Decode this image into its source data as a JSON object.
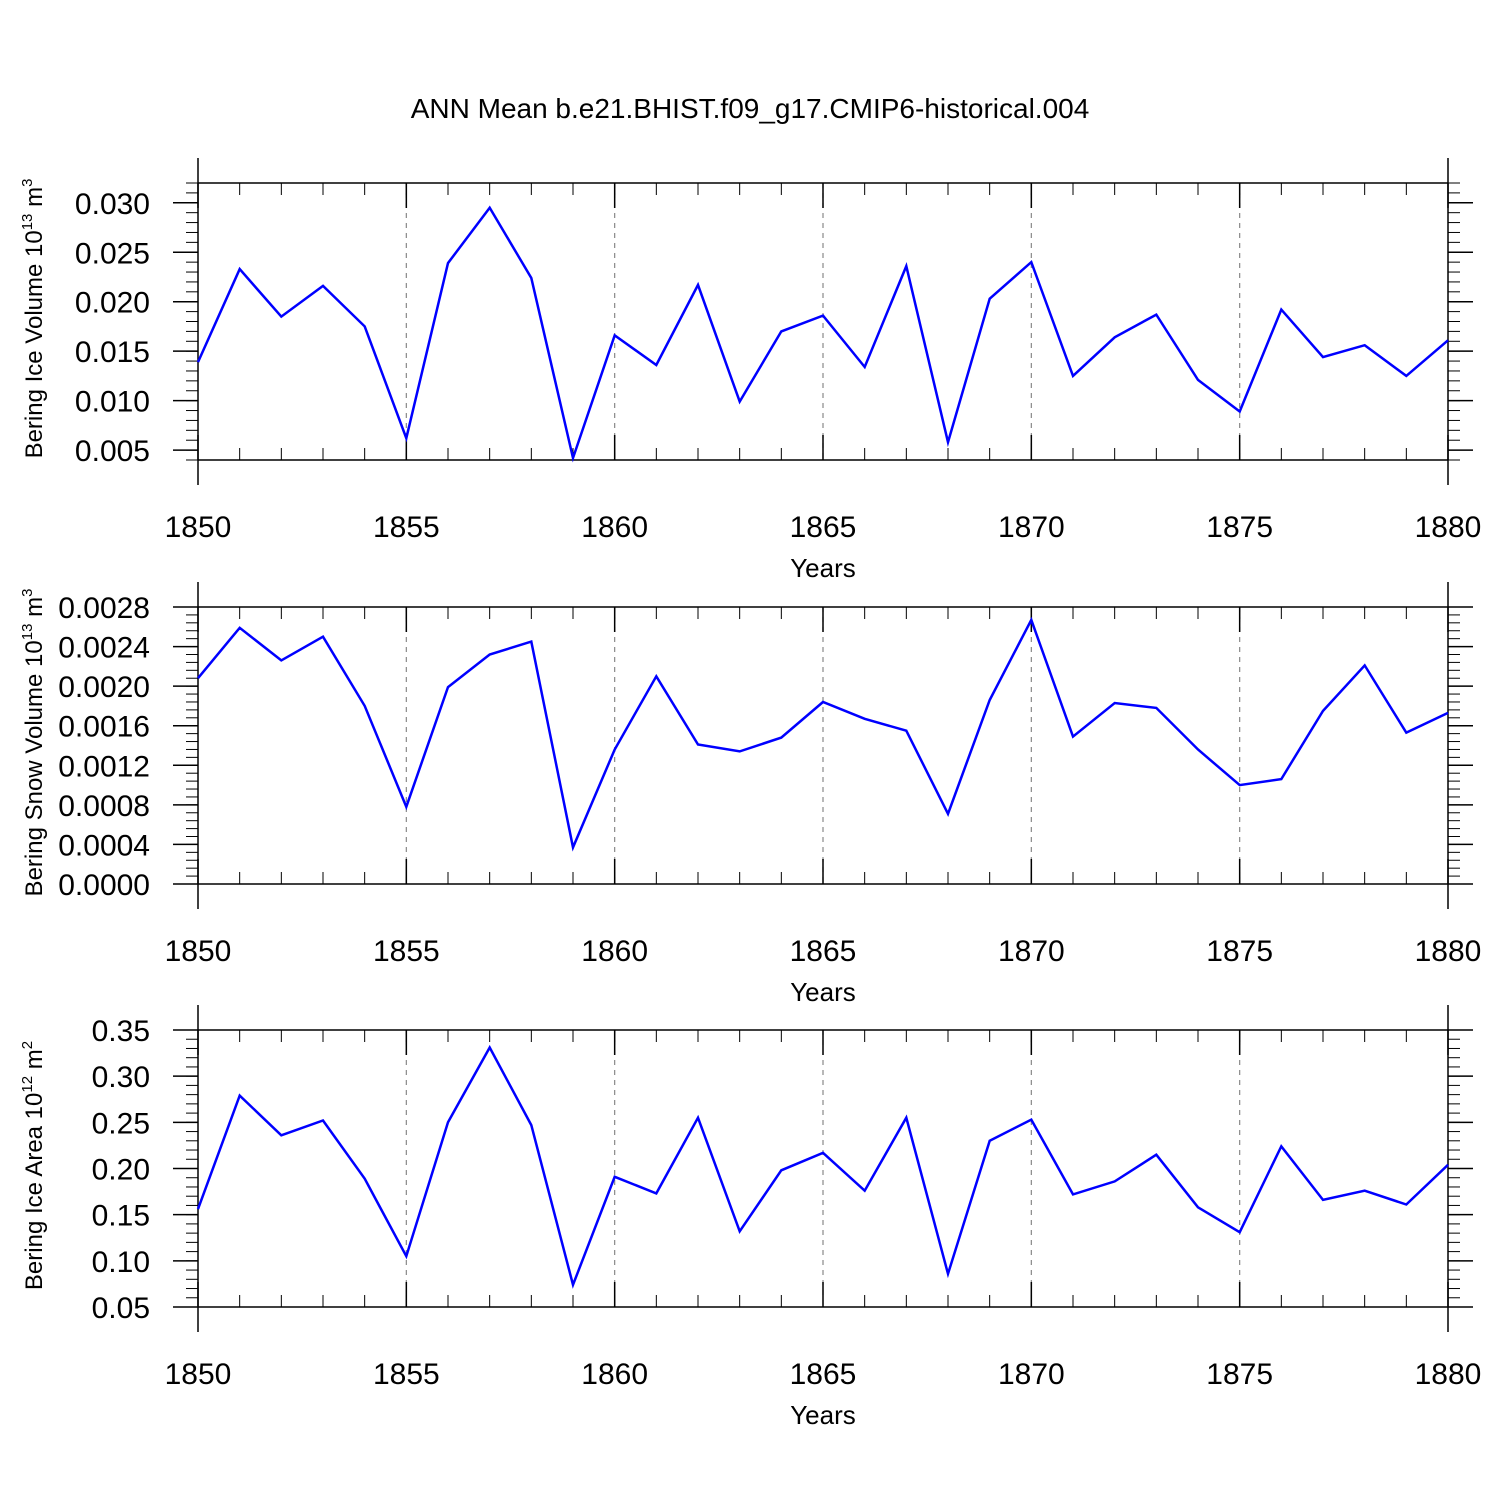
{
  "title": "ANN Mean b.e21.BHIST.f09_g17.CMIP6-historical.004",
  "colors": {
    "line": "#0000ff",
    "axis": "#000000",
    "grid": "#888888"
  },
  "chart_data": [
    {
      "type": "line",
      "ylabel": {
        "text": "Bering Ice Volume 10",
        "exp": "13",
        "unit": " m",
        "unit_exp": "3"
      },
      "xlabel": "Years",
      "xlim": [
        1850,
        1880
      ],
      "xticks": [
        1850,
        1855,
        1860,
        1865,
        1870,
        1875,
        1880
      ],
      "ylim": [
        0.004,
        0.032
      ],
      "yticks": [
        0.005,
        0.01,
        0.015,
        0.02,
        0.025,
        0.03
      ],
      "ytick_labels": [
        "0.005",
        "0.010",
        "0.015",
        "0.020",
        "0.025",
        "0.030"
      ],
      "grid": "vertical dashed at major x ticks",
      "x": [
        1850,
        1851,
        1852,
        1853,
        1854,
        1855,
        1856,
        1857,
        1858,
        1859,
        1860,
        1861,
        1862,
        1863,
        1864,
        1865,
        1866,
        1867,
        1868,
        1869,
        1870,
        1871,
        1872,
        1873,
        1874,
        1875,
        1876,
        1877,
        1878,
        1879,
        1880
      ],
      "values": [
        0.0139,
        0.0233,
        0.0185,
        0.0216,
        0.0175,
        0.0062,
        0.0239,
        0.0295,
        0.0224,
        0.0042,
        0.0166,
        0.0136,
        0.0217,
        0.0099,
        0.017,
        0.0186,
        0.0134,
        0.0236,
        0.0058,
        0.0203,
        0.024,
        0.0125,
        0.0164,
        0.0187,
        0.0121,
        0.0089,
        0.0192,
        0.0144,
        0.0156,
        0.0125,
        0.0161
      ]
    },
    {
      "type": "line",
      "ylabel": {
        "text": "Bering Snow Volume 10",
        "exp": "13",
        "unit": " m",
        "unit_exp": "3"
      },
      "xlabel": "Years",
      "xlim": [
        1850,
        1880
      ],
      "xticks": [
        1850,
        1855,
        1860,
        1865,
        1870,
        1875,
        1880
      ],
      "ylim": [
        0.0,
        0.0028
      ],
      "yticks": [
        0.0,
        0.0004,
        0.0008,
        0.0012,
        0.0016,
        0.002,
        0.0024,
        0.0028
      ],
      "ytick_labels": [
        "0.0000",
        "0.0004",
        "0.0008",
        "0.0012",
        "0.0016",
        "0.0020",
        "0.0024",
        "0.0028"
      ],
      "grid": "vertical dashed at major x ticks",
      "x": [
        1850,
        1851,
        1852,
        1853,
        1854,
        1855,
        1856,
        1857,
        1858,
        1859,
        1860,
        1861,
        1862,
        1863,
        1864,
        1865,
        1866,
        1867,
        1868,
        1869,
        1870,
        1871,
        1872,
        1873,
        1874,
        1875,
        1876,
        1877,
        1878,
        1879,
        1880
      ],
      "values": [
        0.00208,
        0.00259,
        0.00226,
        0.0025,
        0.0018,
        0.00078,
        0.00199,
        0.00232,
        0.00245,
        0.00037,
        0.00136,
        0.0021,
        0.00141,
        0.00134,
        0.00148,
        0.00184,
        0.00167,
        0.00155,
        0.00071,
        0.00186,
        0.00267,
        0.00149,
        0.00183,
        0.00178,
        0.00136,
        0.001,
        0.00106,
        0.00175,
        0.00221,
        0.00153,
        0.00173
      ]
    },
    {
      "type": "line",
      "ylabel": {
        "text": "Bering Ice Area 10",
        "exp": "12",
        "unit": " m",
        "unit_exp": "2"
      },
      "xlabel": "Years",
      "xlim": [
        1850,
        1880
      ],
      "xticks": [
        1850,
        1855,
        1860,
        1865,
        1870,
        1875,
        1880
      ],
      "ylim": [
        0.05,
        0.35
      ],
      "yticks": [
        0.05,
        0.1,
        0.15,
        0.2,
        0.25,
        0.3,
        0.35
      ],
      "ytick_labels": [
        "0.05",
        "0.10",
        "0.15",
        "0.20",
        "0.25",
        "0.30",
        "0.35"
      ],
      "grid": "vertical dashed at major x ticks",
      "x": [
        1850,
        1851,
        1852,
        1853,
        1854,
        1855,
        1856,
        1857,
        1858,
        1859,
        1860,
        1861,
        1862,
        1863,
        1864,
        1865,
        1866,
        1867,
        1868,
        1869,
        1870,
        1871,
        1872,
        1873,
        1874,
        1875,
        1876,
        1877,
        1878,
        1879,
        1880
      ],
      "values": [
        0.156,
        0.279,
        0.236,
        0.252,
        0.189,
        0.105,
        0.25,
        0.331,
        0.247,
        0.074,
        0.191,
        0.173,
        0.255,
        0.132,
        0.198,
        0.217,
        0.176,
        0.255,
        0.086,
        0.23,
        0.253,
        0.172,
        0.186,
        0.215,
        0.158,
        0.131,
        0.224,
        0.166,
        0.176,
        0.161,
        0.204
      ]
    }
  ]
}
